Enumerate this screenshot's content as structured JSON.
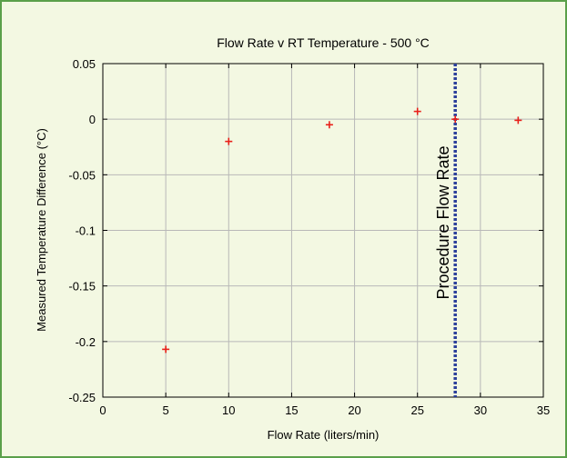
{
  "chart_data": {
    "type": "scatter",
    "title": "Flow Rate v RT Temperature - 500 °C",
    "xlabel": "Flow Rate (liters/min)",
    "ylabel": "Measured Temperature Difference (°C)",
    "xlim": [
      0,
      35
    ],
    "ylim": [
      -0.25,
      0.05
    ],
    "xticks": [
      0,
      5,
      10,
      15,
      20,
      25,
      30,
      35
    ],
    "xtick_labels": [
      "0",
      "5",
      "10",
      "15",
      "20",
      "25",
      "30",
      "35"
    ],
    "yticks": [
      0.05,
      0,
      -0.05,
      -0.1,
      -0.15,
      -0.2,
      -0.25
    ],
    "ytick_labels": [
      "0.05",
      "0",
      "-0.05",
      "-0.1",
      "-0.15",
      "-0.2",
      "-0.25"
    ],
    "grid": true,
    "series": [
      {
        "marker": "plus",
        "color": "#e8201a",
        "x": [
          5,
          10,
          18,
          25,
          28,
          33
        ],
        "y": [
          -0.207,
          -0.02,
          -0.005,
          0.007,
          0,
          -0.001
        ]
      }
    ],
    "annotations": [
      {
        "kind": "vertical-line",
        "x": 28,
        "color": "#2b3f9b",
        "style": "dotted",
        "label": "Procedure Flow Rate"
      }
    ]
  }
}
